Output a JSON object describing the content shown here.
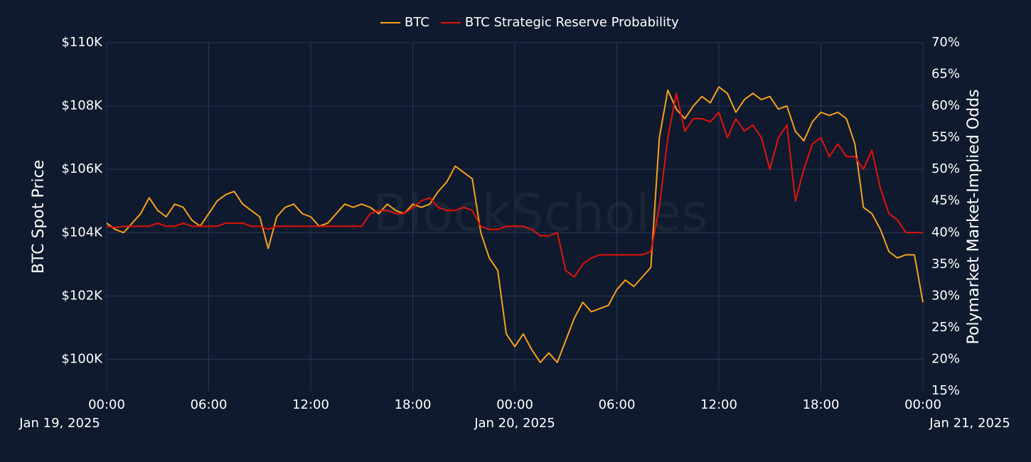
{
  "chart_data": {
    "type": "line",
    "watermark": "BlockScholes",
    "y_label": "BTC Spot Price",
    "y2_label": "Polymarket Market-Implied Odds",
    "xlim": [
      "2025-01-19 00:00",
      "2025-01-21 00:00"
    ],
    "xticks": [
      {
        "value": "2025-01-19 00:00",
        "label": [
          "00:00",
          "Jan 19, 2025"
        ]
      },
      {
        "value": "2025-01-19 06:00",
        "label": [
          "06:00"
        ]
      },
      {
        "value": "2025-01-19 12:00",
        "label": [
          "12:00"
        ]
      },
      {
        "value": "2025-01-19 18:00",
        "label": [
          "18:00"
        ]
      },
      {
        "value": "2025-01-20 00:00",
        "label": [
          "00:00",
          "Jan 20, 2025"
        ]
      },
      {
        "value": "2025-01-20 06:00",
        "label": [
          "06:00"
        ]
      },
      {
        "value": "2025-01-20 12:00",
        "label": [
          "12:00"
        ]
      },
      {
        "value": "2025-01-20 18:00",
        "label": [
          "18:00"
        ]
      },
      {
        "value": "2025-01-21 00:00",
        "label": [
          "00:00",
          "Jan 21, 2025"
        ]
      }
    ],
    "ylim": [
      99000,
      110000
    ],
    "yticks": [
      {
        "value": 100000,
        "label": "$100K"
      },
      {
        "value": 102000,
        "label": "$102K"
      },
      {
        "value": 104000,
        "label": "$104K"
      },
      {
        "value": 106000,
        "label": "$106K"
      },
      {
        "value": 108000,
        "label": "$108K"
      },
      {
        "value": 110000,
        "label": "$110K"
      }
    ],
    "y2lim": [
      15,
      70
    ],
    "y2ticks": [
      {
        "value": 15,
        "label": "15%"
      },
      {
        "value": 20,
        "label": "20%"
      },
      {
        "value": 25,
        "label": "25%"
      },
      {
        "value": 30,
        "label": "30%"
      },
      {
        "value": 35,
        "label": "35%"
      },
      {
        "value": 40,
        "label": "40%"
      },
      {
        "value": 45,
        "label": "45%"
      },
      {
        "value": 50,
        "label": "50%"
      },
      {
        "value": 55,
        "label": "55%"
      },
      {
        "value": 60,
        "label": "60%"
      },
      {
        "value": 65,
        "label": "65%"
      },
      {
        "value": 70,
        "label": "70%"
      }
    ],
    "grid": true,
    "legend": "top",
    "x": [
      "2025-01-19 00:00",
      "2025-01-19 00:30",
      "2025-01-19 01:00",
      "2025-01-19 01:30",
      "2025-01-19 02:00",
      "2025-01-19 02:30",
      "2025-01-19 03:00",
      "2025-01-19 03:30",
      "2025-01-19 04:00",
      "2025-01-19 04:30",
      "2025-01-19 05:00",
      "2025-01-19 05:30",
      "2025-01-19 06:00",
      "2025-01-19 06:30",
      "2025-01-19 07:00",
      "2025-01-19 07:30",
      "2025-01-19 08:00",
      "2025-01-19 08:30",
      "2025-01-19 09:00",
      "2025-01-19 09:30",
      "2025-01-19 10:00",
      "2025-01-19 10:30",
      "2025-01-19 11:00",
      "2025-01-19 11:30",
      "2025-01-19 12:00",
      "2025-01-19 12:30",
      "2025-01-19 13:00",
      "2025-01-19 13:30",
      "2025-01-19 14:00",
      "2025-01-19 14:30",
      "2025-01-19 15:00",
      "2025-01-19 15:30",
      "2025-01-19 16:00",
      "2025-01-19 16:30",
      "2025-01-19 17:00",
      "2025-01-19 17:30",
      "2025-01-19 18:00",
      "2025-01-19 18:30",
      "2025-01-19 19:00",
      "2025-01-19 19:30",
      "2025-01-19 20:00",
      "2025-01-19 20:30",
      "2025-01-19 21:00",
      "2025-01-19 21:30",
      "2025-01-19 22:00",
      "2025-01-19 22:30",
      "2025-01-19 23:00",
      "2025-01-19 23:30",
      "2025-01-20 00:00",
      "2025-01-20 00:30",
      "2025-01-20 01:00",
      "2025-01-20 01:30",
      "2025-01-20 02:00",
      "2025-01-20 02:30",
      "2025-01-20 03:00",
      "2025-01-20 03:30",
      "2025-01-20 04:00",
      "2025-01-20 04:30",
      "2025-01-20 05:00",
      "2025-01-20 05:30",
      "2025-01-20 06:00",
      "2025-01-20 06:30",
      "2025-01-20 07:00",
      "2025-01-20 07:30",
      "2025-01-20 08:00",
      "2025-01-20 08:30",
      "2025-01-20 09:00",
      "2025-01-20 09:30",
      "2025-01-20 10:00",
      "2025-01-20 10:30",
      "2025-01-20 11:00",
      "2025-01-20 11:30",
      "2025-01-20 12:00",
      "2025-01-20 12:30",
      "2025-01-20 13:00",
      "2025-01-20 13:30",
      "2025-01-20 14:00",
      "2025-01-20 14:30",
      "2025-01-20 15:00",
      "2025-01-20 15:30",
      "2025-01-20 16:00",
      "2025-01-20 16:30",
      "2025-01-20 17:00",
      "2025-01-20 17:30",
      "2025-01-20 18:00",
      "2025-01-20 18:30",
      "2025-01-20 19:00",
      "2025-01-20 19:30",
      "2025-01-20 20:00",
      "2025-01-20 20:30",
      "2025-01-20 21:00",
      "2025-01-20 21:30",
      "2025-01-20 22:00",
      "2025-01-20 22:30",
      "2025-01-20 23:00",
      "2025-01-20 23:30",
      "2025-01-21 00:00"
    ],
    "series": [
      {
        "name": "BTC",
        "color": "#f7a11a",
        "axis": "y",
        "values": [
          104300,
          104100,
          104000,
          104300,
          104600,
          105100,
          104700,
          104500,
          104900,
          104800,
          104400,
          104200,
          104600,
          105000,
          105200,
          105300,
          104900,
          104700,
          104500,
          103500,
          104500,
          104800,
          104900,
          104600,
          104500,
          104200,
          104300,
          104600,
          104900,
          104800,
          104900,
          104800,
          104600,
          104900,
          104700,
          104600,
          104900,
          104800,
          104900,
          105300,
          105600,
          106100,
          105900,
          105700,
          104000,
          103200,
          102800,
          100800,
          100400,
          100800,
          100300,
          99900,
          100200,
          99900,
          100600,
          101300,
          101800,
          101500,
          101600,
          101700,
          102200,
          102500,
          102300,
          102600,
          102900,
          107000,
          108500,
          107900,
          107600,
          108000,
          108300,
          108100,
          108600,
          108400,
          107800,
          108200,
          108400,
          108200,
          108300,
          107900,
          108000,
          107200,
          106900,
          107500,
          107800,
          107700,
          107800,
          107600,
          106800,
          104800,
          104600,
          104100,
          103400,
          103200,
          103300,
          103300,
          101800
        ]
      },
      {
        "name": "BTC Strategic Reserve Probability",
        "color": "#e3120b",
        "axis": "y2",
        "values": [
          41,
          40.8,
          41,
          41,
          41,
          41,
          41.5,
          41,
          41,
          41.5,
          41,
          41,
          41,
          41,
          41.5,
          41.5,
          41.5,
          41,
          41,
          40.5,
          41,
          41,
          41,
          41,
          41,
          41,
          41,
          41,
          41,
          41,
          41,
          43,
          43.5,
          43.5,
          43,
          43,
          44,
          45,
          45.5,
          44,
          43.5,
          43.5,
          44,
          43.5,
          41,
          40.5,
          40.5,
          41,
          41,
          41,
          40.5,
          39.5,
          39.5,
          40,
          34,
          33,
          35,
          36,
          36.5,
          36.5,
          36.5,
          36.5,
          36.5,
          36.5,
          37,
          44,
          55,
          62,
          56,
          58,
          58,
          57.5,
          59,
          55,
          58,
          56,
          57,
          55,
          50,
          55,
          57,
          45,
          50,
          54,
          55,
          52,
          54,
          52,
          52,
          50,
          53,
          47,
          43,
          42,
          40,
          40,
          40
        ]
      }
    ]
  }
}
